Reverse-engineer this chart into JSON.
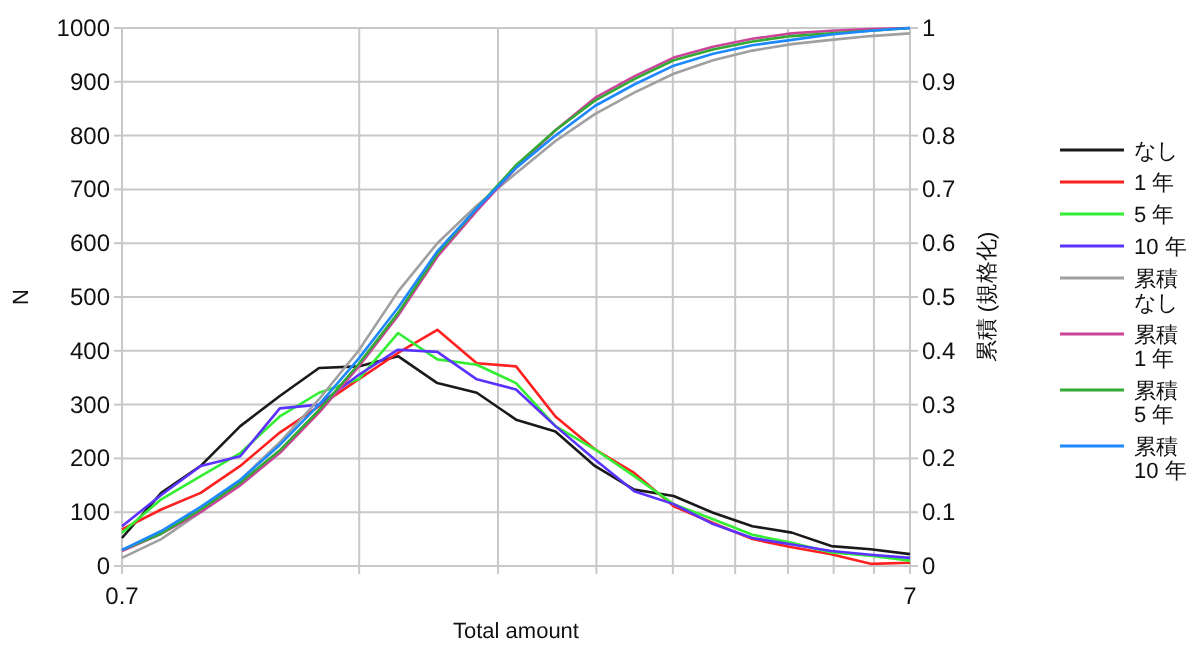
{
  "chart_data": {
    "type": "line",
    "xlabel": "Total amount",
    "ylabel": "N",
    "y2label": "累積 (規格化)",
    "log": "x",
    "grid": true,
    "legend": "right",
    "xlim": [
      0.7,
      7
    ],
    "xticks": [
      {
        "value": 0.7,
        "label": "0.7"
      },
      {
        "value": 1.4,
        "label": null
      },
      {
        "value": 2.1,
        "label": null
      },
      {
        "value": 2.8,
        "label": null
      },
      {
        "value": 3.5,
        "label": null
      },
      {
        "value": 4.2,
        "label": null
      },
      {
        "value": 4.9,
        "label": null
      },
      {
        "value": 5.6,
        "label": null
      },
      {
        "value": 6.3,
        "label": null
      },
      {
        "value": 7,
        "label": "7"
      }
    ],
    "ylim": [
      0,
      1000
    ],
    "yticks": [
      0,
      100,
      200,
      300,
      400,
      500,
      600,
      700,
      800,
      900,
      1000
    ],
    "y2lim": [
      0,
      1
    ],
    "y2ticks": [
      0,
      0.1,
      0.2,
      0.3,
      0.4,
      0.5,
      0.6,
      0.7,
      0.8,
      0.9,
      1
    ],
    "x": [
      0.7,
      0.785,
      0.881,
      0.989,
      1.11,
      1.245,
      1.397,
      1.568,
      1.759,
      1.974,
      2.214,
      2.484,
      2.787,
      3.127,
      3.509,
      3.937,
      4.417,
      4.956,
      5.561,
      6.239,
      7.0
    ],
    "series": [
      {
        "name": "なし",
        "color": "#1a1a1a",
        "values": [
          52,
          136,
          186,
          260,
          316,
          368,
          371,
          390,
          340,
          322,
          272,
          250,
          186,
          142,
          130,
          99,
          74,
          62,
          37,
          31,
          22
        ]
      },
      {
        "name": "1 年",
        "color": "#ff2020",
        "values": [
          68,
          105,
          136,
          186,
          248,
          297,
          347,
          396,
          439,
          377,
          371,
          278,
          217,
          173,
          111,
          80,
          50,
          35,
          22,
          4,
          6
        ]
      },
      {
        "name": "5 年",
        "color": "#33ee33",
        "values": [
          62,
          124,
          167,
          210,
          278,
          322,
          347,
          433,
          384,
          374,
          340,
          260,
          217,
          167,
          115,
          87,
          58,
          43,
          25,
          19,
          10
        ]
      },
      {
        "name": "10 年",
        "color": "#5a33ff",
        "values": [
          74,
          132,
          186,
          204,
          293,
          300,
          355,
          402,
          398,
          347,
          328,
          260,
          198,
          139,
          115,
          78,
          52,
          40,
          28,
          21,
          15
        ]
      },
      {
        "name": "累積なし",
        "color": "#a0a0a0",
        "axis": "y2",
        "values": [
          0.015,
          0.05,
          0.1,
          0.16,
          0.23,
          0.31,
          0.4,
          0.51,
          0.6,
          0.67,
          0.73,
          0.79,
          0.84,
          0.88,
          0.915,
          0.94,
          0.958,
          0.97,
          0.978,
          0.985,
          0.99
        ]
      },
      {
        "name": "累積1 年",
        "color": "#cc4499",
        "axis": "y2",
        "values": [
          0.028,
          0.06,
          0.1,
          0.15,
          0.21,
          0.285,
          0.37,
          0.465,
          0.575,
          0.66,
          0.74,
          0.81,
          0.87,
          0.91,
          0.945,
          0.965,
          0.98,
          0.99,
          0.995,
          0.998,
          1.0
        ]
      },
      {
        "name": "累積5 年",
        "color": "#33aa33",
        "axis": "y2",
        "values": [
          0.03,
          0.06,
          0.105,
          0.155,
          0.215,
          0.29,
          0.375,
          0.47,
          0.58,
          0.665,
          0.745,
          0.81,
          0.865,
          0.905,
          0.94,
          0.96,
          0.975,
          0.985,
          0.99,
          0.995,
          1.0
        ]
      },
      {
        "name": "累積10 年",
        "color": "#1e88ff",
        "axis": "y2",
        "values": [
          0.03,
          0.065,
          0.11,
          0.16,
          0.225,
          0.3,
          0.385,
          0.48,
          0.585,
          0.665,
          0.74,
          0.8,
          0.855,
          0.895,
          0.93,
          0.952,
          0.968,
          0.978,
          0.988,
          0.995,
          1.0
        ]
      }
    ]
  }
}
